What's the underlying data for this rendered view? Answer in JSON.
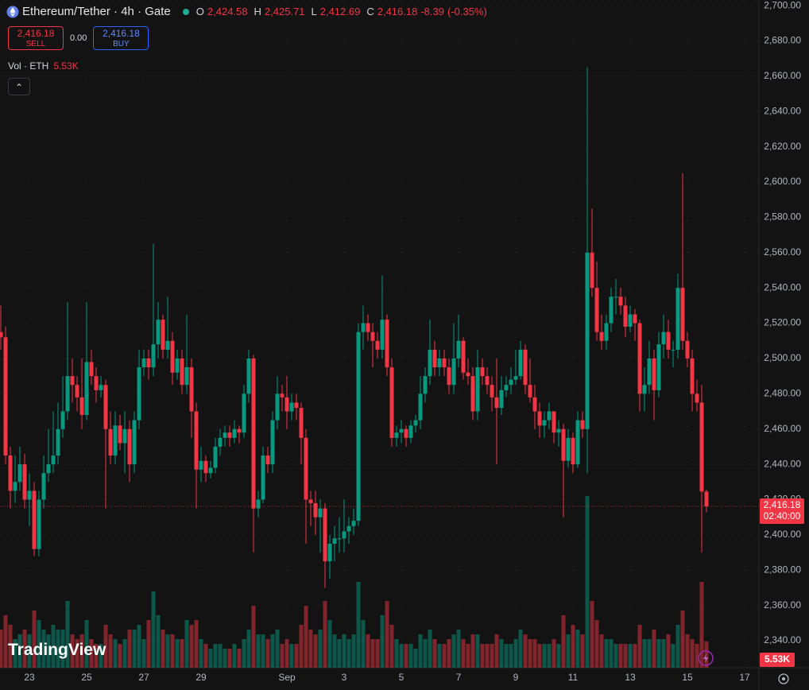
{
  "chart_data": {
    "type": "candlestick",
    "header": {
      "symbol": "Ethereum/Tether · 4h · Gate",
      "ohlc": [
        {
          "key": "O",
          "value": 2424.58,
          "label": "2,424.58"
        },
        {
          "key": "H",
          "value": 2425.71,
          "label": "2,425.71"
        },
        {
          "key": "L",
          "value": 2412.69,
          "label": "2,412.69"
        },
        {
          "key": "C",
          "value": 2416.18,
          "label": "2,416.18"
        }
      ],
      "change": {
        "value": -8.39,
        "label": "-8.39"
      },
      "change_pct": {
        "value": -0.35,
        "label": "(-0.35%)"
      }
    },
    "trade": {
      "sell": {
        "value": 2416.18,
        "label": "2,416.18"
      },
      "sell_text": "SELL",
      "spread": {
        "value": 0,
        "label": "0.00"
      },
      "buy": {
        "value": 2416.18,
        "label": "2,416.18"
      },
      "buy_text": "BUY"
    },
    "volume_legend": {
      "name": "Vol · ETH",
      "value": 5.53,
      "label": "5.53K"
    },
    "price_tag": {
      "value": 2416.18,
      "label": "2,416.18"
    },
    "countdown": "02:40:00",
    "volume_tag": {
      "value": 5.53,
      "label": "5.53K"
    },
    "logo": "TradingView",
    "up_color": "#089981",
    "down_color": "#f23645",
    "grid": true,
    "ylim": [
      2324.7,
      2703.2
    ],
    "yticks": [
      {
        "value": 2340,
        "label": "2,340.00"
      },
      {
        "value": 2360,
        "label": "2,360.00"
      },
      {
        "value": 2380,
        "label": "2,380.00"
      },
      {
        "value": 2400,
        "label": "2,400.00"
      },
      {
        "value": 2420,
        "label": "2,420.00"
      },
      {
        "value": 2440,
        "label": "2,440.00"
      },
      {
        "value": 2460,
        "label": "2,460.00"
      },
      {
        "value": 2480,
        "label": "2,480.00"
      },
      {
        "value": 2500,
        "label": "2,500.00"
      },
      {
        "value": 2520,
        "label": "2,520.00"
      },
      {
        "value": 2540,
        "label": "2,540.00"
      },
      {
        "value": 2560,
        "label": "2,560.00"
      },
      {
        "value": 2580,
        "label": "2,580.00"
      },
      {
        "value": 2600,
        "label": "2,600.00"
      },
      {
        "value": 2620,
        "label": "2,620.00"
      },
      {
        "value": 2640,
        "label": "2,640.00"
      },
      {
        "value": 2660,
        "label": "2,660.00"
      },
      {
        "value": 2680,
        "label": "2,680.00"
      },
      {
        "value": 2700,
        "label": "2,700.00"
      }
    ],
    "y2lim": [
      0,
      60
    ],
    "xlim": [
      -0.17,
      159
    ],
    "xticks": [
      {
        "value": 6,
        "label": "23"
      },
      {
        "value": 18,
        "label": "25"
      },
      {
        "value": 30,
        "label": "27"
      },
      {
        "value": 42,
        "label": "29"
      },
      {
        "value": 60,
        "label": "Sep"
      },
      {
        "value": 72,
        "label": "3"
      },
      {
        "value": 84,
        "label": "5"
      },
      {
        "value": 96,
        "label": "7"
      },
      {
        "value": 108,
        "label": "9"
      },
      {
        "value": 120,
        "label": "11"
      },
      {
        "value": 132,
        "label": "13"
      },
      {
        "value": 144,
        "label": "15"
      },
      {
        "value": 156,
        "label": "17"
      }
    ],
    "candles": [
      [
        2515,
        2530,
        2505,
        2512,
        8
      ],
      [
        2512,
        2518,
        2440,
        2445,
        11
      ],
      [
        2445,
        2450,
        2415,
        2425,
        9
      ],
      [
        2425,
        2445,
        2418,
        2430,
        6
      ],
      [
        2430,
        2450,
        2425,
        2440,
        7
      ],
      [
        2440,
        2446,
        2415,
        2420,
        8
      ],
      [
        2420,
        2435,
        2405,
        2425,
        7
      ],
      [
        2425,
        2430,
        2388,
        2392,
        12
      ],
      [
        2392,
        2425,
        2388,
        2420,
        10
      ],
      [
        2420,
        2445,
        2415,
        2435,
        8
      ],
      [
        2435,
        2460,
        2430,
        2440,
        7
      ],
      [
        2440,
        2470,
        2435,
        2445,
        9
      ],
      [
        2445,
        2475,
        2440,
        2460,
        8
      ],
      [
        2460,
        2490,
        2455,
        2470,
        8
      ],
      [
        2470,
        2532,
        2465,
        2490,
        14
      ],
      [
        2490,
        2500,
        2475,
        2485,
        7
      ],
      [
        2485,
        2490,
        2470,
        2478,
        6
      ],
      [
        2478,
        2500,
        2460,
        2468,
        7
      ],
      [
        2468,
        2532,
        2465,
        2498,
        10
      ],
      [
        2498,
        2505,
        2485,
        2490,
        6
      ],
      [
        2490,
        2495,
        2475,
        2482,
        5
      ],
      [
        2482,
        2490,
        2478,
        2485,
        5
      ],
      [
        2485,
        2488,
        2415,
        2460,
        9
      ],
      [
        2460,
        2470,
        2440,
        2445,
        7
      ],
      [
        2445,
        2470,
        2440,
        2462,
        6
      ],
      [
        2462,
        2468,
        2448,
        2452,
        5
      ],
      [
        2452,
        2470,
        2435,
        2460,
        6
      ],
      [
        2460,
        2465,
        2430,
        2440,
        8
      ],
      [
        2440,
        2470,
        2435,
        2465,
        8
      ],
      [
        2465,
        2505,
        2460,
        2495,
        9
      ],
      [
        2495,
        2505,
        2490,
        2500,
        6
      ],
      [
        2500,
        2505,
        2488,
        2495,
        10
      ],
      [
        2495,
        2565,
        2490,
        2508,
        16
      ],
      [
        2508,
        2532,
        2500,
        2522,
        11
      ],
      [
        2522,
        2525,
        2500,
        2505,
        8
      ],
      [
        2505,
        2535,
        2500,
        2510,
        7
      ],
      [
        2510,
        2515,
        2485,
        2492,
        7
      ],
      [
        2492,
        2505,
        2488,
        2500,
        6
      ],
      [
        2500,
        2505,
        2480,
        2485,
        6
      ],
      [
        2485,
        2525,
        2480,
        2495,
        10
      ],
      [
        2495,
        2500,
        2455,
        2470,
        9
      ],
      [
        2470,
        2475,
        2415,
        2437,
        10
      ],
      [
        2437,
        2450,
        2430,
        2442,
        6
      ],
      [
        2442,
        2445,
        2430,
        2435,
        5
      ],
      [
        2435,
        2442,
        2432,
        2438,
        4
      ],
      [
        2438,
        2455,
        2435,
        2450,
        5
      ],
      [
        2450,
        2460,
        2445,
        2455,
        5
      ],
      [
        2455,
        2462,
        2450,
        2458,
        4
      ],
      [
        2458,
        2462,
        2450,
        2455,
        4
      ],
      [
        2455,
        2465,
        2452,
        2460,
        5
      ],
      [
        2460,
        2462,
        2452,
        2458,
        4
      ],
      [
        2458,
        2485,
        2455,
        2480,
        6
      ],
      [
        2480,
        2505,
        2475,
        2500,
        8
      ],
      [
        2500,
        2502,
        2390,
        2415,
        13
      ],
      [
        2415,
        2425,
        2410,
        2420,
        7
      ],
      [
        2420,
        2450,
        2418,
        2445,
        7
      ],
      [
        2445,
        2450,
        2435,
        2440,
        6
      ],
      [
        2440,
        2470,
        2435,
        2465,
        7
      ],
      [
        2465,
        2490,
        2460,
        2480,
        8
      ],
      [
        2480,
        2485,
        2470,
        2478,
        5
      ],
      [
        2478,
        2490,
        2460,
        2470,
        6
      ],
      [
        2470,
        2480,
        2465,
        2475,
        5
      ],
      [
        2475,
        2480,
        2465,
        2472,
        5
      ],
      [
        2472,
        2475,
        2440,
        2455,
        9
      ],
      [
        2455,
        2460,
        2395,
        2420,
        13
      ],
      [
        2420,
        2425,
        2405,
        2418,
        8
      ],
      [
        2418,
        2425,
        2400,
        2410,
        7
      ],
      [
        2410,
        2420,
        2390,
        2415,
        8
      ],
      [
        2415,
        2418,
        2370,
        2385,
        14
      ],
      [
        2385,
        2400,
        2375,
        2395,
        10
      ],
      [
        2395,
        2405,
        2385,
        2398,
        7
      ],
      [
        2398,
        2410,
        2390,
        2398,
        6
      ],
      [
        2398,
        2420,
        2390,
        2402,
        7
      ],
      [
        2402,
        2410,
        2395,
        2405,
        6
      ],
      [
        2405,
        2415,
        2400,
        2408,
        7
      ],
      [
        2408,
        2520,
        2405,
        2515,
        18
      ],
      [
        2515,
        2530,
        2505,
        2520,
        10
      ],
      [
        2520,
        2525,
        2510,
        2515,
        7
      ],
      [
        2515,
        2520,
        2495,
        2510,
        6
      ],
      [
        2510,
        2515,
        2500,
        2505,
        6
      ],
      [
        2505,
        2547,
        2500,
        2522,
        11
      ],
      [
        2522,
        2525,
        2490,
        2495,
        14
      ],
      [
        2495,
        2500,
        2450,
        2455,
        9
      ],
      [
        2455,
        2462,
        2450,
        2458,
        6
      ],
      [
        2458,
        2465,
        2452,
        2460,
        5
      ],
      [
        2460,
        2462,
        2450,
        2455,
        5
      ],
      [
        2455,
        2465,
        2452,
        2462,
        5
      ],
      [
        2462,
        2468,
        2458,
        2465,
        4
      ],
      [
        2465,
        2490,
        2460,
        2480,
        7
      ],
      [
        2480,
        2495,
        2475,
        2490,
        6
      ],
      [
        2490,
        2522,
        2485,
        2505,
        8
      ],
      [
        2505,
        2510,
        2490,
        2495,
        6
      ],
      [
        2495,
        2505,
        2490,
        2500,
        5
      ],
      [
        2500,
        2505,
        2490,
        2495,
        5
      ],
      [
        2495,
        2500,
        2480,
        2485,
        6
      ],
      [
        2485,
        2520,
        2480,
        2500,
        7
      ],
      [
        2500,
        2525,
        2495,
        2510,
        8
      ],
      [
        2510,
        2512,
        2488,
        2492,
        6
      ],
      [
        2492,
        2500,
        2485,
        2490,
        5
      ],
      [
        2490,
        2495,
        2465,
        2470,
        7
      ],
      [
        2470,
        2505,
        2465,
        2495,
        7
      ],
      [
        2495,
        2500,
        2485,
        2490,
        5
      ],
      [
        2490,
        2495,
        2480,
        2485,
        5
      ],
      [
        2485,
        2490,
        2470,
        2478,
        5
      ],
      [
        2478,
        2500,
        2440,
        2472,
        7
      ],
      [
        2472,
        2490,
        2468,
        2482,
        6
      ],
      [
        2482,
        2490,
        2478,
        2485,
        5
      ],
      [
        2485,
        2495,
        2480,
        2488,
        5
      ],
      [
        2488,
        2505,
        2485,
        2490,
        6
      ],
      [
        2490,
        2510,
        2488,
        2505,
        8
      ],
      [
        2505,
        2508,
        2480,
        2485,
        7
      ],
      [
        2485,
        2500,
        2475,
        2478,
        6
      ],
      [
        2478,
        2485,
        2460,
        2470,
        6
      ],
      [
        2470,
        2475,
        2455,
        2462,
        5
      ],
      [
        2462,
        2470,
        2455,
        2465,
        5
      ],
      [
        2465,
        2475,
        2460,
        2470,
        5
      ],
      [
        2470,
        2470,
        2452,
        2458,
        6
      ],
      [
        2458,
        2465,
        2450,
        2460,
        5
      ],
      [
        2460,
        2463,
        2410,
        2442,
        11
      ],
      [
        2442,
        2460,
        2438,
        2455,
        7
      ],
      [
        2455,
        2458,
        2435,
        2440,
        9
      ],
      [
        2440,
        2470,
        2438,
        2465,
        8
      ],
      [
        2465,
        2470,
        2455,
        2460,
        7
      ],
      [
        2460,
        2665,
        2435,
        2560,
        36
      ],
      [
        2560,
        2585,
        2535,
        2540,
        14
      ],
      [
        2540,
        2555,
        2510,
        2515,
        10
      ],
      [
        2515,
        2525,
        2505,
        2510,
        7
      ],
      [
        2510,
        2525,
        2505,
        2520,
        6
      ],
      [
        2520,
        2540,
        2515,
        2535,
        6
      ],
      [
        2535,
        2545,
        2525,
        2535,
        5
      ],
      [
        2535,
        2540,
        2525,
        2530,
        5
      ],
      [
        2530,
        2535,
        2512,
        2518,
        5
      ],
      [
        2518,
        2530,
        2515,
        2525,
        5
      ],
      [
        2525,
        2528,
        2510,
        2520,
        5
      ],
      [
        2520,
        2522,
        2470,
        2480,
        9
      ],
      [
        2480,
        2495,
        2470,
        2485,
        6
      ],
      [
        2485,
        2510,
        2480,
        2500,
        6
      ],
      [
        2500,
        2505,
        2465,
        2482,
        8
      ],
      [
        2482,
        2515,
        2478,
        2508,
        6
      ],
      [
        2508,
        2525,
        2500,
        2515,
        6
      ],
      [
        2515,
        2522,
        2500,
        2505,
        7
      ],
      [
        2505,
        2510,
        2495,
        2505,
        5
      ],
      [
        2505,
        2548,
        2500,
        2540,
        9
      ],
      [
        2540,
        2605,
        2505,
        2510,
        12
      ],
      [
        2510,
        2515,
        2495,
        2500,
        7
      ],
      [
        2500,
        2505,
        2470,
        2480,
        6
      ],
      [
        2480,
        2488,
        2470,
        2475,
        5
      ],
      [
        2475,
        2485,
        2390,
        2424.58,
        18
      ],
      [
        2424.58,
        2425.71,
        2412.69,
        2416.18,
        5.53
      ]
    ]
  }
}
